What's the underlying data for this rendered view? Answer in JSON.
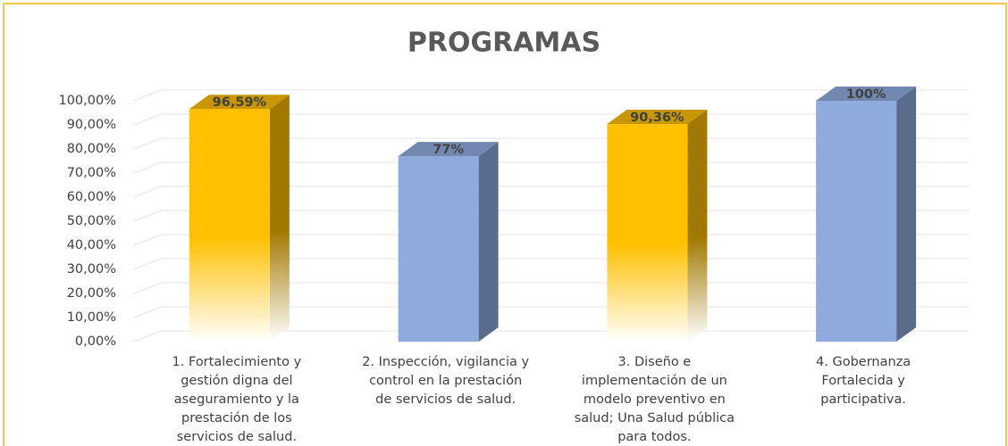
{
  "chart_data": {
    "type": "bar3d",
    "title": "PROGRAMAS",
    "categories": [
      "1. Fortalecimiento y gestión digna del aseguramiento y la prestación de los servicios de salud.",
      "2. Inspección, vigilancia y control en la prestación de servicios de salud.",
      "3. Diseño e implementación de un modelo preventivo en salud; Una Salud pública para todos.",
      "4. Gobernanza Fortalecida y participativa."
    ],
    "values": [
      96.59,
      77,
      90.36,
      100
    ],
    "value_labels": [
      "96,59%",
      "77%",
      "90,36%",
      "100%"
    ],
    "colors": [
      "#ffc000",
      "#8faadc",
      "#ffc000",
      "#8faadc"
    ],
    "ylim": [
      0,
      100
    ],
    "yticks": [
      {
        "value": 0,
        "label": "0,00%"
      },
      {
        "value": 10,
        "label": "10,00%"
      },
      {
        "value": 20,
        "label": "20,00%"
      },
      {
        "value": 30,
        "label": "30,00%"
      },
      {
        "value": 40,
        "label": "40,00%"
      },
      {
        "value": 50,
        "label": "50,00%"
      },
      {
        "value": 60,
        "label": "60,00%"
      },
      {
        "value": 70,
        "label": "70,00%"
      },
      {
        "value": 80,
        "label": "80,00%"
      },
      {
        "value": 90,
        "label": "90,00%"
      },
      {
        "value": 100,
        "label": "100,00%"
      }
    ],
    "grid": true
  }
}
